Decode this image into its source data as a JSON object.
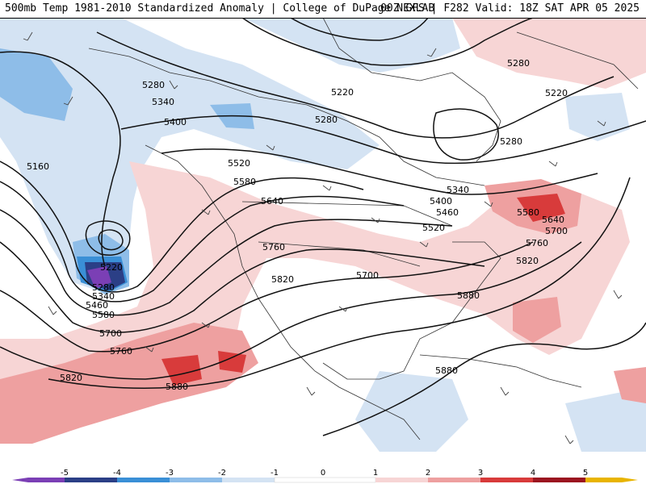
{
  "header": {
    "left_title": "500mb Temp 1981-2010 Standardized Anomaly | College of DuPage NEXLAB",
    "right_title": "00Z GFS | F282 Valid: 18Z SAT APR 05 2025"
  },
  "colors": {
    "anom_-5": "#7b3fb5",
    "anom_-4": "#2b3f86",
    "anom_-3": "#3a8fd6",
    "anom_-2": "#8ebde8",
    "anom_-1": "#d4e3f3",
    "anom_1": "#f7d5d5",
    "anom_2": "#eea0a0",
    "anom_3": "#d83b3b",
    "anom_4": "#9b1420",
    "anom_5": "#e8b400",
    "contour": "#111111",
    "coastline": "#333333",
    "barb": "#444444"
  },
  "height_contour_labels": [
    {
      "text": "5220"
    },
    {
      "text": "5280"
    },
    {
      "text": "5280"
    },
    {
      "text": "5280"
    },
    {
      "text": "5220"
    },
    {
      "text": "5340"
    },
    {
      "text": "5400"
    },
    {
      "text": "5160"
    },
    {
      "text": "5280"
    },
    {
      "text": "5520"
    },
    {
      "text": "5340"
    },
    {
      "text": "5580"
    },
    {
      "text": "5400"
    },
    {
      "text": "5640"
    },
    {
      "text": "5460"
    },
    {
      "text": "5580"
    },
    {
      "text": "5520"
    },
    {
      "text": "5640"
    },
    {
      "text": "5700"
    },
    {
      "text": "5760"
    },
    {
      "text": "5220"
    },
    {
      "text": "5760"
    },
    {
      "text": "5700"
    },
    {
      "text": "5820"
    },
    {
      "text": "5820"
    },
    {
      "text": "5280"
    },
    {
      "text": "5340"
    },
    {
      "text": "5460"
    },
    {
      "text": "5580"
    },
    {
      "text": "5880"
    },
    {
      "text": "5700"
    },
    {
      "text": "5760"
    },
    {
      "text": "5820"
    },
    {
      "text": "5880"
    },
    {
      "text": "5880"
    }
  ],
  "colorbar": {
    "ticks": [
      "-5",
      "-4",
      "-3",
      "-2",
      "-1",
      "0",
      "1",
      "2",
      "3",
      "4",
      "5"
    ]
  }
}
